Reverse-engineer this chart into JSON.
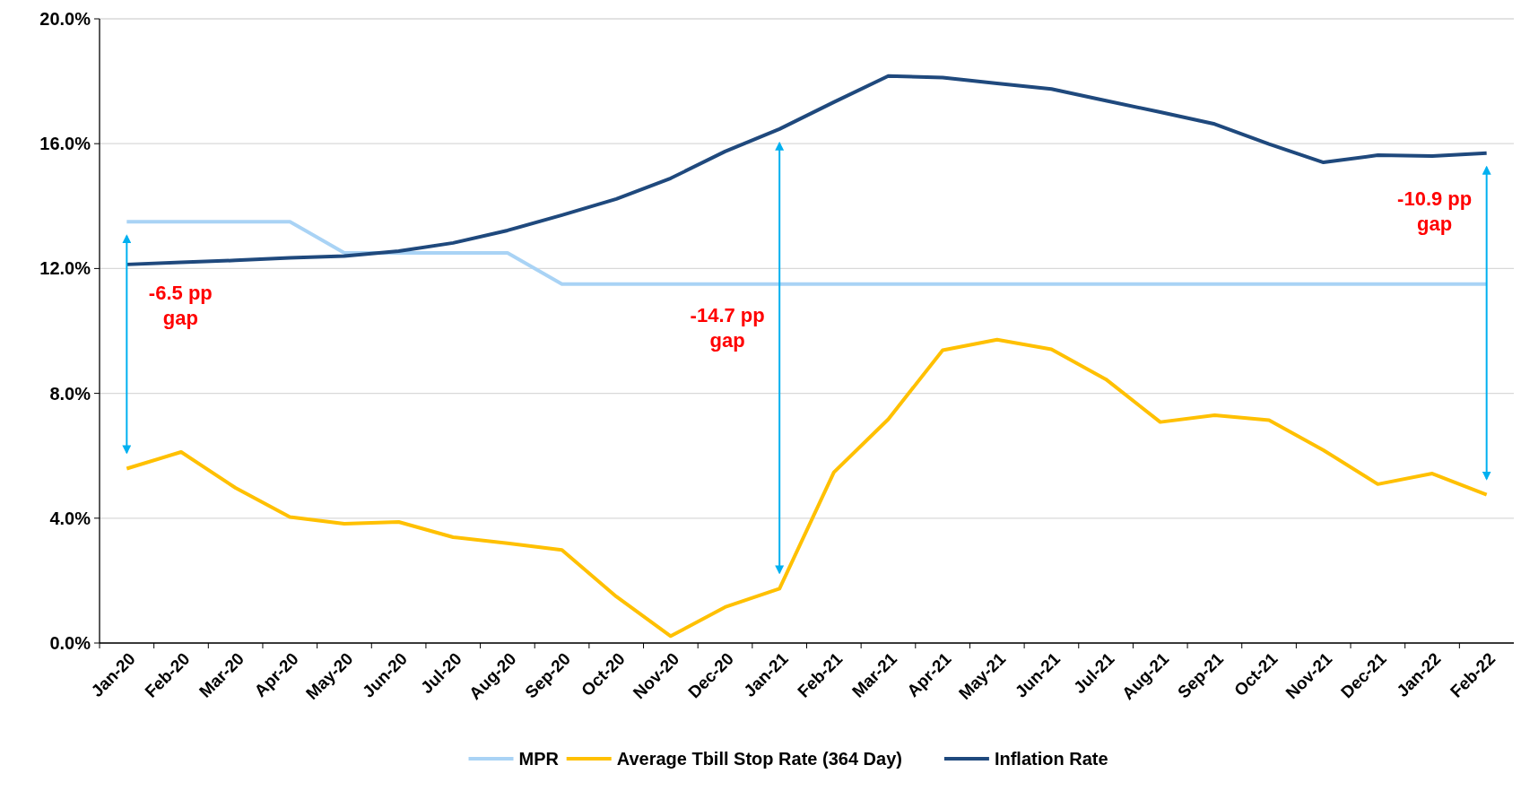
{
  "chart_data": {
    "type": "line",
    "categories": [
      "Jan-20",
      "Feb-20",
      "Mar-20",
      "Apr-20",
      "May-20",
      "Jun-20",
      "Jul-20",
      "Aug-20",
      "Sep-20",
      "Oct-20",
      "Nov-20",
      "Dec-20",
      "Jan-21",
      "Feb-21",
      "Mar-21",
      "Apr-21",
      "May-21",
      "Jun-21",
      "Jul-21",
      "Aug-21",
      "Sep-21",
      "Oct-21",
      "Nov-21",
      "Dec-21",
      "Jan-22",
      "Feb-22"
    ],
    "series": [
      {
        "name": "MPR",
        "color": "#a9d3f5",
        "values": [
          13.5,
          13.5,
          13.5,
          13.5,
          12.5,
          12.5,
          12.5,
          12.5,
          11.5,
          11.5,
          11.5,
          11.5,
          11.5,
          11.5,
          11.5,
          11.5,
          11.5,
          11.5,
          11.5,
          11.5,
          11.5,
          11.5,
          11.5,
          11.5,
          11.5,
          11.5
        ]
      },
      {
        "name": "Average Tbill Stop Rate (364 Day)",
        "color": "#ffc000",
        "values": [
          5.59,
          6.12,
          4.97,
          4.04,
          3.82,
          3.88,
          3.39,
          3.2,
          2.98,
          1.49,
          0.22,
          1.15,
          1.74,
          5.47,
          7.17,
          9.38,
          9.72,
          9.41,
          8.45,
          7.08,
          7.3,
          7.14,
          6.18,
          5.09,
          5.43,
          4.75
        ]
      },
      {
        "name": "Inflation Rate",
        "color": "#1f497d",
        "values": [
          12.13,
          12.2,
          12.26,
          12.34,
          12.4,
          12.56,
          12.82,
          13.22,
          13.71,
          14.23,
          14.89,
          15.75,
          16.47,
          17.33,
          18.17,
          18.12,
          17.93,
          17.75,
          17.38,
          17.01,
          16.63,
          15.99,
          15.4,
          15.63,
          15.6,
          15.7
        ]
      }
    ],
    "ylim": [
      0,
      20
    ],
    "yticks": [
      {
        "value": 0,
        "label": "0.0%"
      },
      {
        "value": 4,
        "label": "4.0%"
      },
      {
        "value": 8,
        "label": "8.0%"
      },
      {
        "value": 12,
        "label": "12.0%"
      },
      {
        "value": 16,
        "label": "16.0%"
      },
      {
        "value": 20,
        "label": "20.0%"
      }
    ],
    "grid": "y",
    "legend": "bottom",
    "marker": "none",
    "line_style": "solid",
    "annotations": [
      "-6.5 pp gap",
      "-14.7 pp gap",
      "-10.9 pp gap"
    ]
  }
}
